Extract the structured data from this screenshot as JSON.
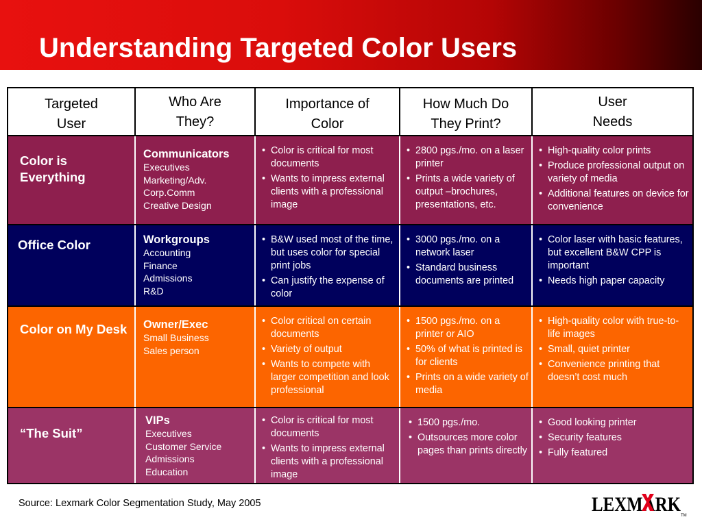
{
  "title": "Understanding Targeted Color Users",
  "colors": {
    "title_bar_start": "#e8110f",
    "title_bar_end": "#2a0000",
    "row_purple": "#8e1f4e",
    "row_navy": "#00005c",
    "row_orange": "#fc6500",
    "row_mauve": "#9b3466"
  },
  "header": {
    "col1": [
      "Targeted",
      "User"
    ],
    "col2": [
      "Who Are",
      "They?"
    ],
    "col3": [
      "Importance of",
      "Color"
    ],
    "col4": [
      "How Much Do",
      "They Print?"
    ],
    "col5": [
      "User",
      "Needs"
    ]
  },
  "rows": [
    {
      "segment": "Color is Everything",
      "who_head": "Communicators",
      "who": [
        "Executives",
        "Marketing/Adv.",
        "Corp.Comm",
        "Creative Design"
      ],
      "importance": [
        "Color is critical for most documents",
        "Wants to impress external clients with a professional image"
      ],
      "print": [
        "2800 pgs./mo. on a laser printer",
        "Prints a wide variety of output –brochures, presentations, etc."
      ],
      "needs": [
        "High-quality color prints",
        "Produce professional output on variety of media",
        "Additional features on device for convenience"
      ]
    },
    {
      "segment": "Office Color",
      "who_head": "Workgroups",
      "who": [
        "Accounting",
        "Finance",
        "Admissions",
        "R&D"
      ],
      "importance": [
        "B&W used most of the time, but uses color for special print jobs",
        "Can justify the expense of color"
      ],
      "print": [
        "3000 pgs./mo. on a network laser",
        "Standard business documents are printed"
      ],
      "needs": [
        "Color laser with basic features, but excellent B&W CPP is important",
        "Needs high paper capacity"
      ]
    },
    {
      "segment": "Color on My Desk",
      "who_head": "Owner/Exec",
      "who": [
        "Small Business",
        "Sales person"
      ],
      "importance": [
        "Color critical on certain documents",
        "Variety of output",
        "Wants to compete with larger competition and look professional"
      ],
      "print": [
        "1500 pgs./mo. on a printer or AIO",
        "50% of what is printed is for clients",
        "Prints on a wide variety of media"
      ],
      "needs": [
        "High-quality color with true-to-life images",
        "Small, quiet printer",
        "Convenience printing that doesn’t cost much"
      ]
    },
    {
      "segment": "“The Suit”",
      "who_head": "VIPs",
      "who": [
        "Executives",
        "Customer Service",
        "Admissions",
        "Education"
      ],
      "importance": [
        "Color is critical for most documents",
        "Wants to impress external clients with a professional image"
      ],
      "print": [
        "1500 pgs./mo.",
        "Outsources more color pages than prints directly"
      ],
      "needs": [
        "Good looking printer",
        "Security features",
        "Fully featured"
      ]
    }
  ],
  "source": "Source: Lexmark Color Segmentation Study, May 2005",
  "logo": {
    "text": "LEXMARK",
    "mark": "TM",
    "icon": "lexmark-logo"
  }
}
